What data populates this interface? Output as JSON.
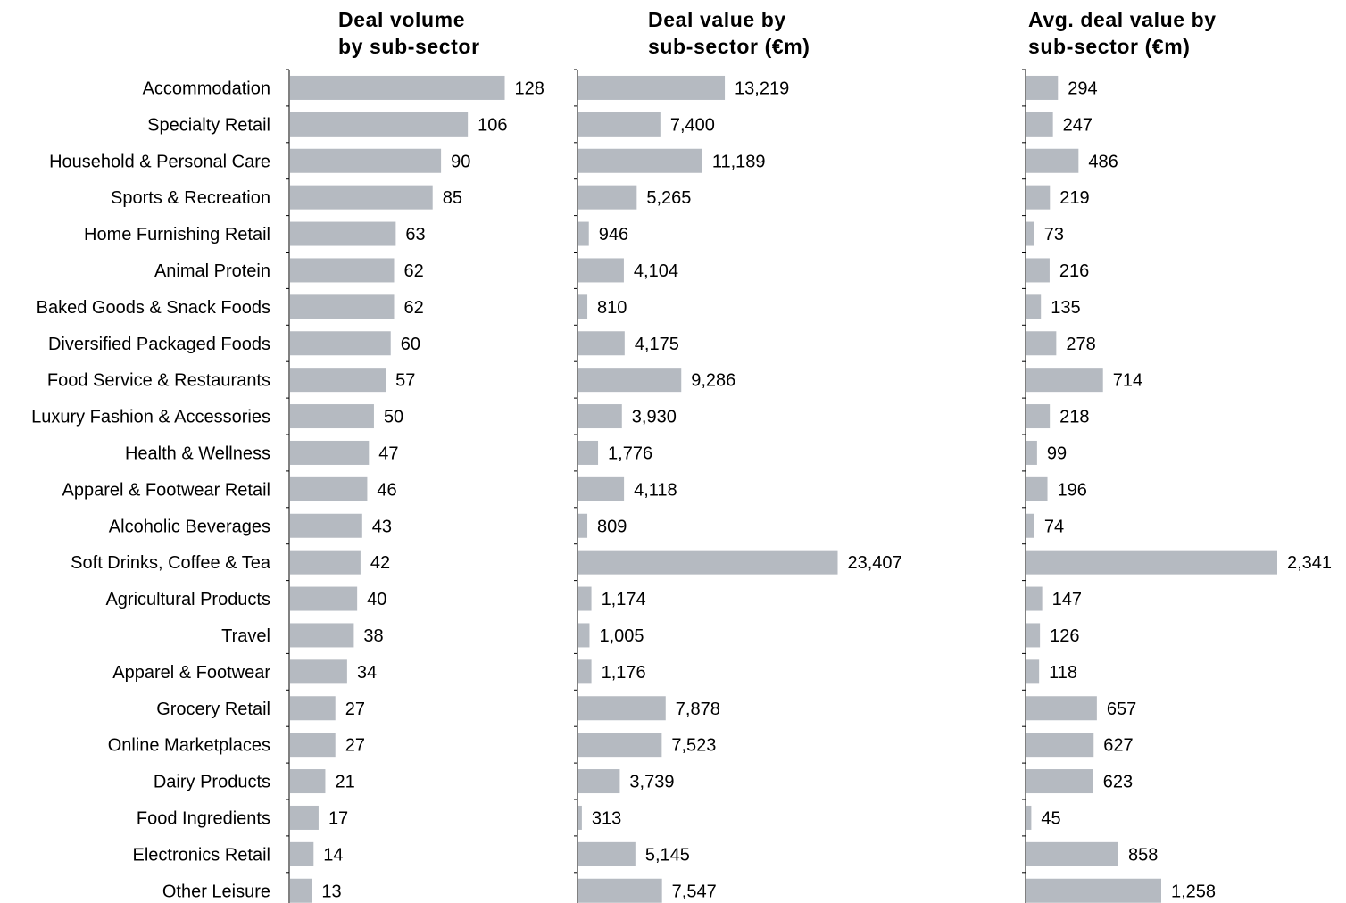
{
  "chart_data": {
    "type": "bar",
    "orientation": "horizontal",
    "categories": [
      "Accommodation",
      "Specialty Retail",
      "Household & Personal Care",
      "Sports & Recreation",
      "Home Furnishing Retail",
      "Animal Protein",
      "Baked Goods & Snack Foods",
      "Diversified Packaged Foods",
      "Food Service & Restaurants",
      "Luxury Fashion & Accessories",
      "Health & Wellness",
      "Apparel & Footwear Retail",
      "Alcoholic Beverages",
      "Soft Drinks, Coffee & Tea",
      "Agricultural Products",
      "Travel",
      "Apparel & Footwear",
      "Grocery Retail",
      "Online Marketplaces",
      "Dairy Products",
      "Food Ingredients",
      "Electronics Retail",
      "Other Leisure"
    ],
    "panels": [
      {
        "title_lines": [
          "Deal volume",
          "by sub-sector"
        ],
        "values": [
          128,
          106,
          90,
          85,
          63,
          62,
          62,
          60,
          57,
          50,
          47,
          46,
          43,
          42,
          40,
          38,
          34,
          27,
          27,
          21,
          17,
          14,
          13
        ],
        "labels": [
          "128",
          "106",
          "90",
          "85",
          "63",
          "62",
          "62",
          "60",
          "57",
          "50",
          "47",
          "46",
          "43",
          "42",
          "40",
          "38",
          "34",
          "27",
          "27",
          "21",
          "17",
          "14",
          "13"
        ]
      },
      {
        "title_lines": [
          "Deal value by",
          "sub-sector (€m)"
        ],
        "values": [
          13219,
          7400,
          11189,
          5265,
          946,
          4104,
          810,
          4175,
          9286,
          3930,
          1776,
          4118,
          809,
          23407,
          1174,
          1005,
          1176,
          7878,
          7523,
          3739,
          313,
          5145,
          7547
        ],
        "labels": [
          "13,219",
          "7,400",
          "11,189",
          "5,265",
          "946",
          "4,104",
          "810",
          "4,175",
          "9,286",
          "3,930",
          "1,776",
          "4,118",
          "809",
          "23,407",
          "1,174",
          "1,005",
          "1,176",
          "7,878",
          "7,523",
          "3,739",
          "313",
          "5,145",
          "7,547"
        ]
      },
      {
        "title_lines": [
          "Avg. deal value by",
          "sub-sector (€m)"
        ],
        "values": [
          294,
          247,
          486,
          219,
          73,
          216,
          135,
          278,
          714,
          218,
          99,
          196,
          74,
          2341,
          147,
          126,
          118,
          657,
          627,
          623,
          45,
          858,
          1258
        ],
        "labels": [
          "294",
          "247",
          "486",
          "219",
          "73",
          "216",
          "135",
          "278",
          "714",
          "218",
          "99",
          "196",
          "74",
          "2,341",
          "147",
          "126",
          "118",
          "657",
          "627",
          "623",
          "45",
          "858",
          "1,258"
        ]
      }
    ],
    "grid": false,
    "legend": "none",
    "bar_color": "#b5bac1"
  }
}
